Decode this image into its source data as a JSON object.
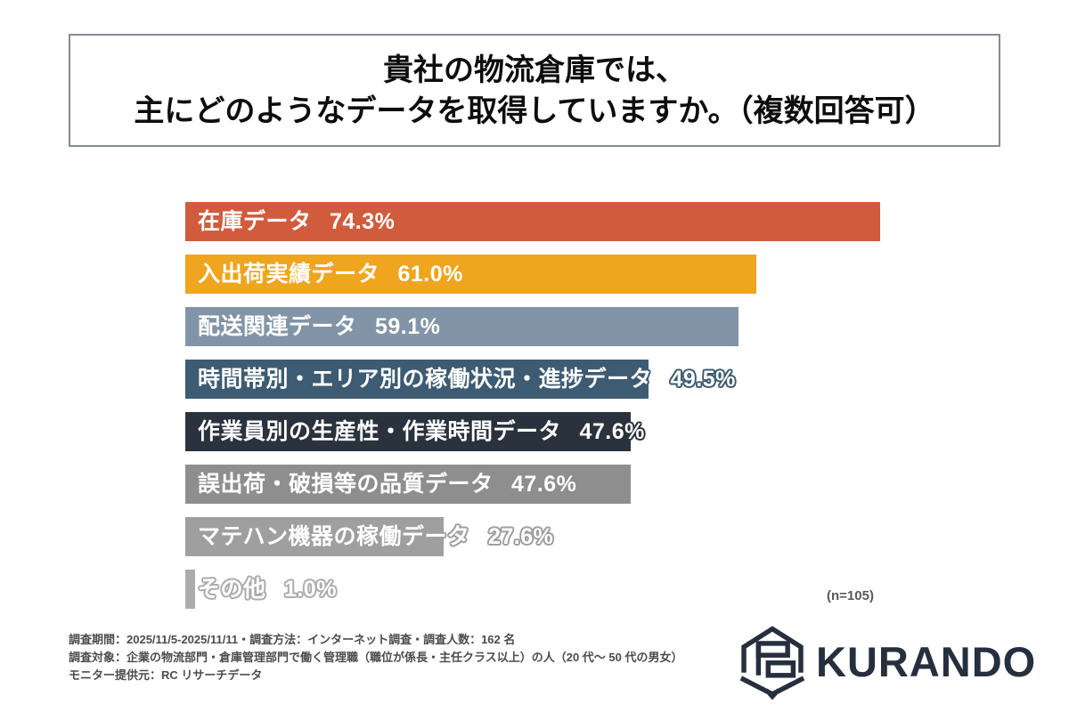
{
  "title": {
    "line1": "貴社の物流倉庫では、",
    "line2": "主にどのようなデータを取得していますか。（複数回答可）"
  },
  "chart_data": {
    "type": "bar",
    "orientation": "horizontal",
    "unit": "%",
    "categories": [
      "在庫データ",
      "入出荷実績データ",
      "配送関連データ",
      "時間帯別・エリア別の稼働状況・進捗データ",
      "作業員別の生産性・作業時間データ",
      "誤出荷・破損等の品質データ",
      "マテハン機器の稼働データ",
      "その他"
    ],
    "values": [
      74.3,
      61.0,
      59.1,
      49.5,
      47.6,
      47.6,
      27.6,
      1.0
    ],
    "colors": [
      "#d15c3d",
      "#f0a51f",
      "#8294a7",
      "#3d5b73",
      "#2a323e",
      "#8e8e8e",
      "#9f9f9f",
      "#acacac"
    ],
    "value_label_format": "label value%",
    "xlim": [
      0,
      78
    ],
    "grid": false,
    "legend": "none",
    "sample_note": "(n=105)"
  },
  "footer": {
    "line1": "調査期間：2025/11/5-2025/11/11・調査方法：インターネット調査・調査人数：162 名",
    "line2": "調査対象：企業の物流部門・倉庫管理部門で働く管理職（職位が係長・主任クラス以上）の人（20 代～ 50 代の男女）",
    "line3": "モニター提供元：RC リサーチデータ"
  },
  "logo": {
    "text": "KURANDO",
    "icon": "kurando-hexagon-warehouse-mark",
    "color": "#262f3d"
  }
}
